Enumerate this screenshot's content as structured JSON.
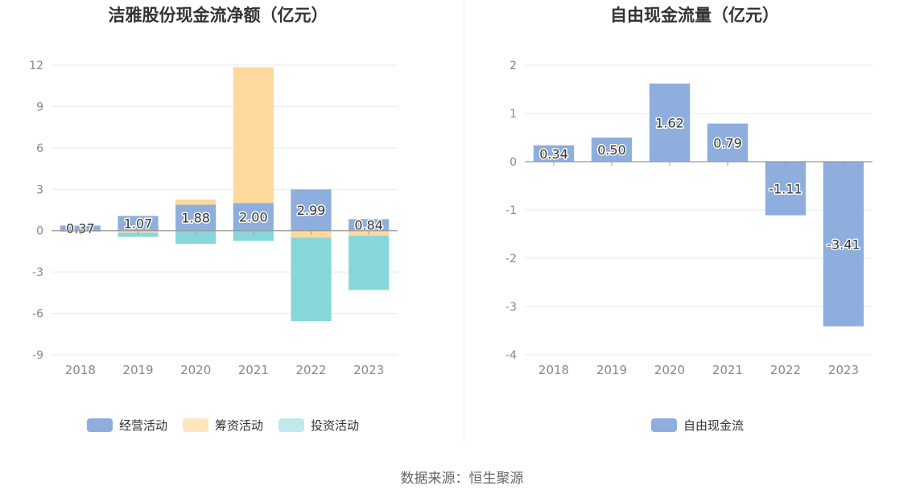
{
  "source": "数据来源：恒生聚源",
  "colors": {
    "operating": "#8eaedd",
    "financing": "#fdd99e",
    "investing": "#86d7da",
    "investing_legend": "#bfe9ec",
    "financing_legend": "#fde6bf",
    "free_cash": "#8eaedd"
  },
  "chart_data": [
    {
      "type": "bar",
      "stacked": true,
      "title": "洁雅股份现金流净额（亿元）",
      "categories": [
        "2018",
        "2019",
        "2020",
        "2021",
        "2022",
        "2023"
      ],
      "series": [
        {
          "name": "经营活动",
          "values": [
            0.37,
            1.07,
            1.88,
            2.0,
            2.99,
            0.84
          ]
        },
        {
          "name": "筹资活动",
          "values": [
            -0.02,
            -0.15,
            0.38,
            9.85,
            -0.5,
            -0.35
          ]
        },
        {
          "name": "投资活动",
          "values": [
            -0.05,
            -0.3,
            -0.95,
            -0.75,
            -6.05,
            -3.95
          ]
        }
      ],
      "data_labels": [
        "0.37",
        "1.07",
        "1.88",
        "2.00",
        "2.99",
        "0.84"
      ],
      "ylim": [
        -9,
        12
      ],
      "yticks": [
        "12",
        "9",
        "6",
        "3",
        "0",
        "-3",
        "-6",
        "-9"
      ],
      "ytick_values": [
        12,
        9,
        6,
        3,
        0,
        -3,
        -6,
        -9
      ],
      "grid": true,
      "legend": "bottom"
    },
    {
      "type": "bar",
      "title": "自由现金流量（亿元）",
      "categories": [
        "2018",
        "2019",
        "2020",
        "2021",
        "2022",
        "2023"
      ],
      "series": [
        {
          "name": "自由现金流",
          "values": [
            0.34,
            0.5,
            1.62,
            0.79,
            -1.11,
            -3.41
          ]
        }
      ],
      "data_labels": [
        "0.34",
        "0.50",
        "1.62",
        "0.79",
        "-1.11",
        "-3.41"
      ],
      "ylim": [
        -4,
        2
      ],
      "yticks": [
        "2",
        "1",
        "0",
        "-1",
        "-2",
        "-3",
        "-4"
      ],
      "ytick_values": [
        2,
        1,
        0,
        -1,
        -2,
        -3,
        -4
      ],
      "grid": true,
      "legend": "bottom"
    }
  ]
}
